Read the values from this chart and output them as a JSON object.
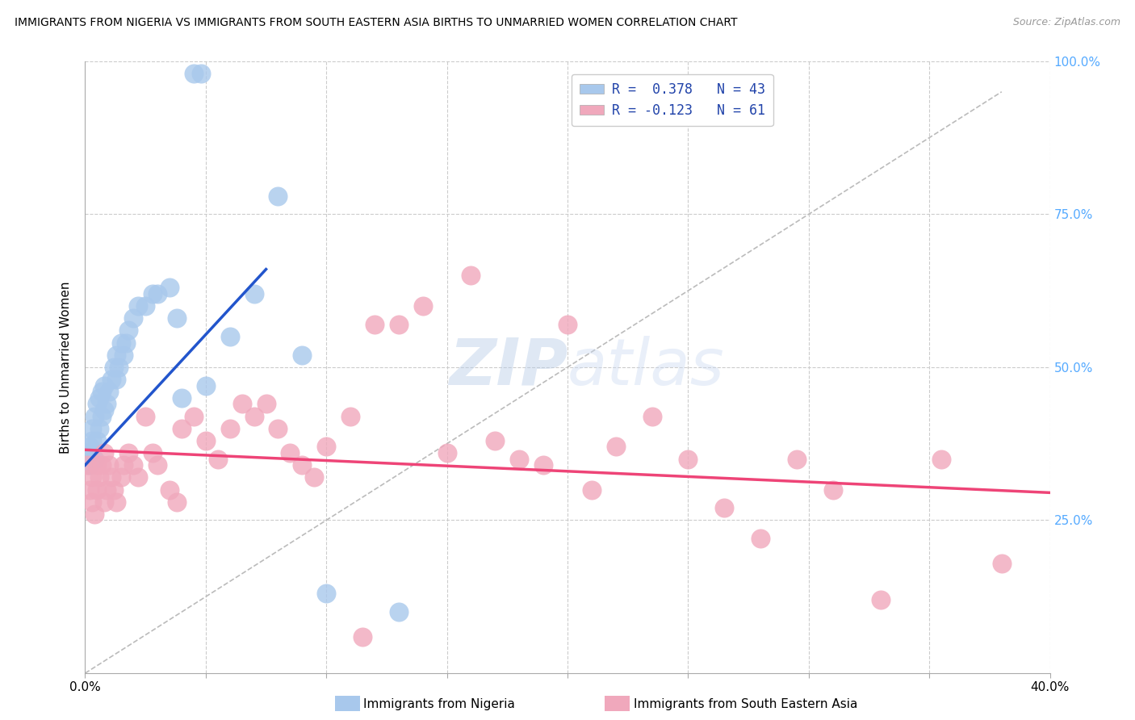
{
  "title": "IMMIGRANTS FROM NIGERIA VS IMMIGRANTS FROM SOUTH EASTERN ASIA BIRTHS TO UNMARRIED WOMEN CORRELATION CHART",
  "source": "Source: ZipAtlas.com",
  "ylabel": "Births to Unmarried Women",
  "xmin": 0.0,
  "xmax": 0.4,
  "ymin": 0.0,
  "ymax": 1.0,
  "nigeria_R": 0.378,
  "nigeria_N": 43,
  "sea_R": -0.123,
  "sea_N": 61,
  "nigeria_color": "#a8c8ec",
  "sea_color": "#f0a8bc",
  "nigeria_line_color": "#2255cc",
  "sea_line_color": "#ee4477",
  "diag_line_color": "#bbbbbb",
  "background_color": "#ffffff",
  "grid_color": "#cccccc",
  "right_tick_color": "#55aaff",
  "nigeria_x": [
    0.001,
    0.002,
    0.002,
    0.003,
    0.003,
    0.004,
    0.004,
    0.005,
    0.005,
    0.006,
    0.006,
    0.007,
    0.007,
    0.008,
    0.008,
    0.009,
    0.01,
    0.011,
    0.012,
    0.013,
    0.013,
    0.014,
    0.015,
    0.016,
    0.017,
    0.018,
    0.02,
    0.022,
    0.025,
    0.028,
    0.03,
    0.035,
    0.038,
    0.04,
    0.045,
    0.048,
    0.05,
    0.06,
    0.07,
    0.08,
    0.09,
    0.1,
    0.13
  ],
  "nigeria_y": [
    0.36,
    0.34,
    0.37,
    0.38,
    0.4,
    0.35,
    0.42,
    0.38,
    0.44,
    0.4,
    0.45,
    0.42,
    0.46,
    0.43,
    0.47,
    0.44,
    0.46,
    0.48,
    0.5,
    0.48,
    0.52,
    0.5,
    0.54,
    0.52,
    0.54,
    0.56,
    0.58,
    0.6,
    0.6,
    0.62,
    0.62,
    0.63,
    0.58,
    0.45,
    0.98,
    0.98,
    0.47,
    0.55,
    0.62,
    0.78,
    0.52,
    0.13,
    0.1
  ],
  "sea_x": [
    0.001,
    0.002,
    0.003,
    0.003,
    0.004,
    0.005,
    0.005,
    0.006,
    0.007,
    0.008,
    0.008,
    0.009,
    0.01,
    0.011,
    0.012,
    0.013,
    0.015,
    0.016,
    0.018,
    0.02,
    0.022,
    0.025,
    0.028,
    0.03,
    0.035,
    0.038,
    0.04,
    0.045,
    0.05,
    0.055,
    0.06,
    0.065,
    0.07,
    0.075,
    0.08,
    0.085,
    0.09,
    0.095,
    0.1,
    0.11,
    0.115,
    0.12,
    0.13,
    0.14,
    0.15,
    0.16,
    0.17,
    0.18,
    0.19,
    0.2,
    0.21,
    0.22,
    0.235,
    0.25,
    0.265,
    0.28,
    0.295,
    0.31,
    0.33,
    0.355,
    0.38
  ],
  "sea_y": [
    0.34,
    0.3,
    0.32,
    0.28,
    0.26,
    0.34,
    0.3,
    0.32,
    0.34,
    0.36,
    0.28,
    0.3,
    0.34,
    0.32,
    0.3,
    0.28,
    0.32,
    0.34,
    0.36,
    0.34,
    0.32,
    0.42,
    0.36,
    0.34,
    0.3,
    0.28,
    0.4,
    0.42,
    0.38,
    0.35,
    0.4,
    0.44,
    0.42,
    0.44,
    0.4,
    0.36,
    0.34,
    0.32,
    0.37,
    0.42,
    0.06,
    0.57,
    0.57,
    0.6,
    0.36,
    0.65,
    0.38,
    0.35,
    0.34,
    0.57,
    0.3,
    0.37,
    0.42,
    0.35,
    0.27,
    0.22,
    0.35,
    0.3,
    0.12,
    0.35,
    0.18
  ]
}
